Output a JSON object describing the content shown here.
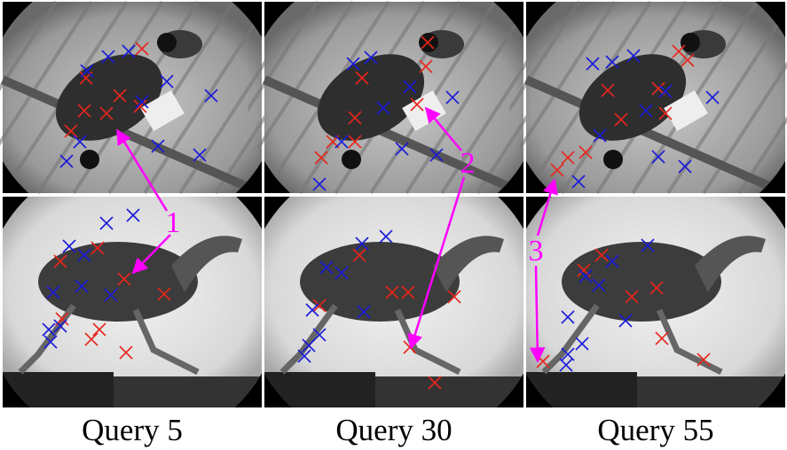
{
  "captions": [
    "Query 5",
    "Query 30",
    "Query 55"
  ],
  "annotations": [
    "1",
    "2",
    "3"
  ]
}
